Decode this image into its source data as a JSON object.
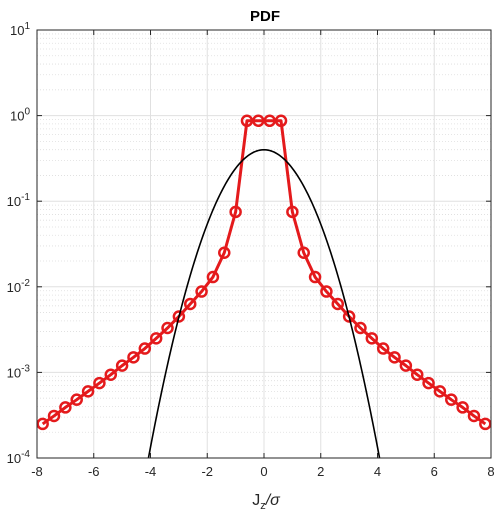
{
  "chart_data": {
    "type": "line",
    "title": "PDF",
    "xlabel": {
      "base": "J",
      "sub": "z",
      "rest": "/σ"
    },
    "ylabel": "",
    "xlim": [
      -8,
      8
    ],
    "ylim": [
      0.0001,
      10
    ],
    "yscale": "log",
    "grid": true,
    "minor_grid": true,
    "x_ticks": [
      -8,
      -6,
      -4,
      -2,
      0,
      2,
      4,
      6,
      8
    ],
    "x_tick_labels": [
      "-8",
      "-6",
      "-4",
      "-2",
      "0",
      "2",
      "4",
      "6",
      "8"
    ],
    "y_tick_exponents": [
      "-4",
      "-3",
      "-2",
      "-1",
      "0",
      "1"
    ],
    "y_tick_base": "10",
    "series": [
      {
        "kind": "markers-line",
        "color": "#e41a1c",
        "marker": "circle",
        "x": [
          -7.8,
          -7.4,
          -7.0,
          -6.6,
          -6.2,
          -5.8,
          -5.4,
          -5.0,
          -4.6,
          -4.2,
          -3.8,
          -3.4,
          -3.0,
          -2.6,
          -2.2,
          -1.8,
          -1.4,
          -1.0,
          -0.6,
          -0.2,
          0.2,
          0.6,
          1.0,
          1.4,
          1.8,
          2.2,
          2.6,
          3.0,
          3.4,
          3.8,
          4.2,
          4.6,
          5.0,
          5.4,
          5.8,
          6.2,
          6.6,
          7.0,
          7.4,
          7.8
        ],
        "y": [
          0.00025,
          0.00031,
          0.00039,
          0.00048,
          0.0006,
          0.00075,
          0.00094,
          0.0012,
          0.0015,
          0.0019,
          0.0025,
          0.0033,
          0.0045,
          0.0063,
          0.0088,
          0.013,
          0.025,
          0.075,
          0.87,
          0.87,
          0.87,
          0.87,
          0.075,
          0.025,
          0.013,
          0.0088,
          0.0063,
          0.0045,
          0.0033,
          0.0025,
          0.0019,
          0.0015,
          0.0012,
          0.00094,
          0.00075,
          0.0006,
          0.00048,
          0.00039,
          0.00031,
          0.00025
        ]
      },
      {
        "kind": "curve",
        "color": "#000000",
        "function": "standard-normal-pdf",
        "xrange": [
          -4.1,
          4.1
        ]
      }
    ]
  }
}
